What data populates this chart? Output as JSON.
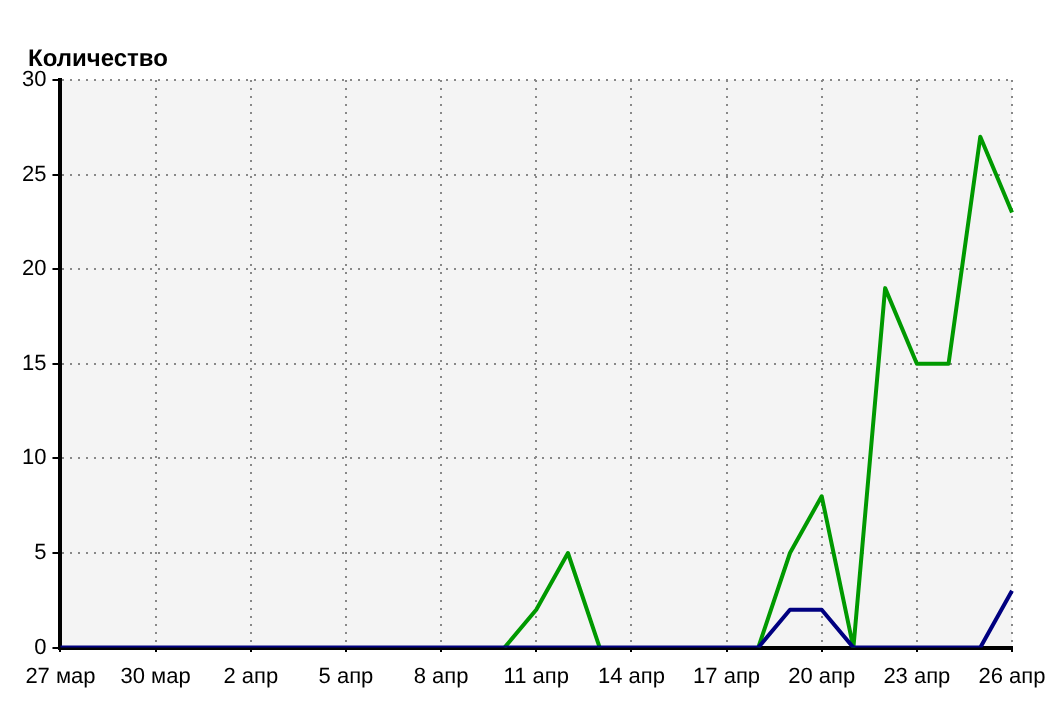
{
  "chart_data": {
    "type": "line",
    "title": "Количество",
    "categories": [
      "27 мар",
      null,
      null,
      "30 мар",
      null,
      null,
      "2 апр",
      null,
      null,
      "5 апр",
      null,
      null,
      "8 апр",
      null,
      null,
      "11 апр",
      null,
      null,
      "14 апр",
      null,
      null,
      "17 апр",
      null,
      null,
      "20 апр",
      null,
      null,
      "23 апр",
      null,
      null,
      "26 апр"
    ],
    "series": [
      {
        "color": "#009900",
        "values": [
          null,
          null,
          null,
          null,
          null,
          null,
          null,
          null,
          null,
          null,
          null,
          null,
          null,
          null,
          0,
          2,
          5,
          0,
          null,
          null,
          null,
          null,
          0,
          5,
          8,
          0,
          19,
          15,
          15,
          27,
          23
        ]
      },
      {
        "color": "#000080",
        "values": [
          0,
          0,
          0,
          0,
          0,
          0,
          0,
          0,
          0,
          0,
          0,
          0,
          0,
          0,
          0,
          0,
          0,
          0,
          0,
          0,
          0,
          0,
          0,
          2,
          2,
          0,
          0,
          0,
          0,
          0,
          3
        ]
      }
    ],
    "ylim": [
      0,
      30
    ],
    "yticks": [
      0,
      5,
      10,
      15,
      20,
      25,
      30
    ],
    "grid": true,
    "line_style": "solid",
    "marker": "none"
  }
}
